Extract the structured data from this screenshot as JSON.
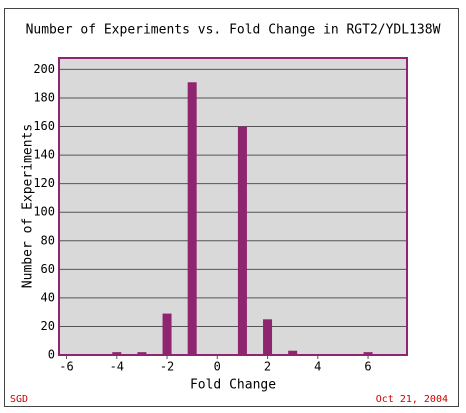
{
  "chart_data": {
    "type": "bar",
    "title": "Number of Experiments vs. Fold Change in RGT2/YDL138W",
    "x_label": "Fold Change",
    "y_label": "Number of Experiments",
    "x": [
      -6,
      -5,
      -4,
      -3,
      -2,
      -1,
      0,
      1,
      2,
      3,
      4,
      5,
      6
    ],
    "values": [
      0,
      0,
      2,
      2,
      29,
      191,
      0,
      160,
      25,
      3,
      0,
      0,
      2
    ],
    "color": "#8f2470",
    "xlim": [
      -6.3,
      7.55
    ],
    "xticks": [
      -6,
      -4,
      -2,
      0,
      2,
      4,
      6
    ],
    "ylim": [
      0,
      208
    ],
    "yticks": [
      0,
      20,
      40,
      60,
      80,
      100,
      120,
      140,
      160,
      180,
      200
    ],
    "grid": true,
    "source": "SGD",
    "date": "Oct 21, 2004"
  }
}
